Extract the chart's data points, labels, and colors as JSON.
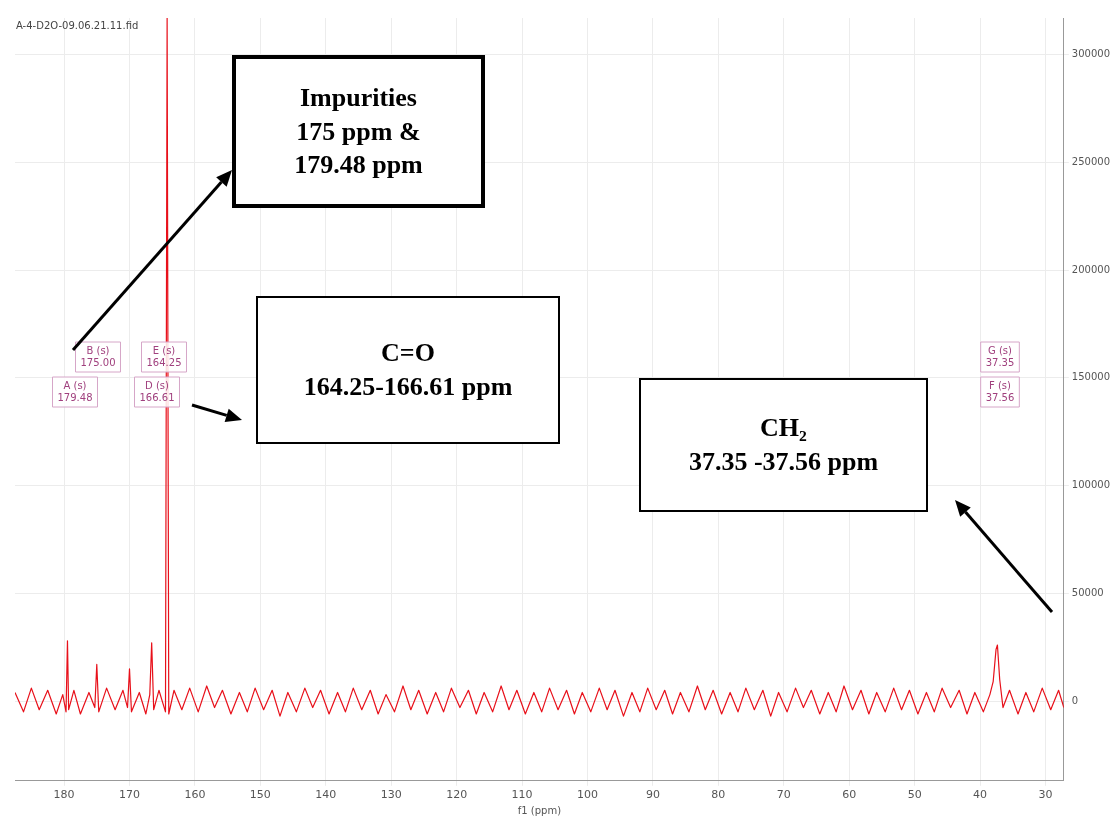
{
  "chart_data": {
    "type": "line",
    "xlabel": "f1 (ppm)",
    "x": [
      187.5,
      186.2,
      185,
      183.8,
      182.5,
      181.2,
      180.2,
      179.7,
      179.48,
      179.3,
      178.5,
      177.5,
      176.2,
      175.3,
      175.0,
      174.7,
      173.5,
      172.2,
      171,
      170.3,
      170.0,
      169.7,
      168.5,
      167.5,
      166.9,
      166.61,
      166.3,
      165.5,
      164.5,
      164.25,
      164.0,
      163.2,
      162,
      160.8,
      159.5,
      158.2,
      157,
      155.8,
      154.5,
      153.2,
      152,
      150.8,
      149.5,
      148.2,
      147,
      145.8,
      144.5,
      143.2,
      142,
      140.8,
      139.5,
      138.2,
      137,
      135.8,
      134.5,
      133.2,
      132,
      130.8,
      129.5,
      128.2,
      127,
      125.8,
      124.5,
      123.2,
      122,
      120.8,
      119.5,
      118.2,
      117,
      115.8,
      114.5,
      113.2,
      112,
      110.8,
      109.5,
      108.2,
      107,
      105.8,
      104.5,
      103.2,
      102,
      100.8,
      99.5,
      98.2,
      97,
      95.8,
      94.5,
      93.2,
      92,
      90.8,
      89.5,
      88.2,
      87,
      85.8,
      84.5,
      83.2,
      82,
      80.8,
      79.5,
      78.2,
      77,
      75.8,
      74.5,
      73.2,
      72,
      70.8,
      69.5,
      68.2,
      67,
      65.8,
      64.5,
      63.2,
      62,
      60.8,
      59.5,
      58.2,
      57,
      55.8,
      54.5,
      53.2,
      52,
      50.8,
      49.5,
      48.2,
      47,
      45.8,
      44.5,
      43.2,
      42,
      40.8,
      39.5,
      38.5,
      38.0,
      37.56,
      37.35,
      37.0,
      36.5,
      35.5,
      34.2,
      33,
      31.8,
      30.5,
      29.2,
      28,
      27.2
    ],
    "series": [
      {
        "color": "#e8101a",
        "values": [
          4000,
          -5000,
          6000,
          -4000,
          5000,
          -6000,
          3000,
          -5000,
          28000,
          -4000,
          5000,
          -6000,
          4000,
          -3000,
          17000,
          -5000,
          6000,
          -4000,
          5000,
          -3000,
          15000,
          -5000,
          4000,
          -6000,
          3000,
          27000,
          -4000,
          5000,
          -5000,
          317000,
          -6000,
          5000,
          -4000,
          6000,
          -5000,
          7000,
          -3000,
          5000,
          -6000,
          4000,
          -5000,
          6000,
          -4000,
          5000,
          -7000,
          4000,
          -5000,
          6000,
          -3000,
          5000,
          -6000,
          4000,
          -5000,
          6000,
          -4000,
          5000,
          -6000,
          3000,
          -5000,
          7000,
          -4000,
          5000,
          -6000,
          4000,
          -5000,
          6000,
          -3000,
          5000,
          -6000,
          4000,
          -5000,
          7000,
          -4000,
          5000,
          -6000,
          4000,
          -5000,
          6000,
          -4000,
          5000,
          -6000,
          4000,
          -5000,
          6000,
          -4000,
          5000,
          -7000,
          4000,
          -5000,
          6000,
          -4000,
          5000,
          -6000,
          4000,
          -5000,
          7000,
          -4000,
          5000,
          -6000,
          4000,
          -5000,
          6000,
          -4000,
          5000,
          -7000,
          4000,
          -5000,
          6000,
          -3000,
          5000,
          -6000,
          4000,
          -5000,
          7000,
          -4000,
          5000,
          -6000,
          4000,
          -5000,
          6000,
          -4000,
          5000,
          -6000,
          4000,
          -5000,
          6000,
          -3000,
          5000,
          -6000,
          4000,
          -5000,
          3000,
          9000,
          24000,
          26000,
          10000,
          -3000,
          5000,
          -6000,
          4000,
          -5000,
          6000,
          -4000,
          5000,
          -3000
        ]
      }
    ],
    "xlim": [
      187.5,
      27.2
    ],
    "xticks": [
      180,
      170,
      160,
      150,
      140,
      130,
      120,
      110,
      100,
      90,
      80,
      70,
      60,
      50,
      40,
      30
    ],
    "ylim": [
      -37000,
      317000
    ],
    "yticks": [
      0,
      50000,
      100000,
      150000,
      200000,
      250000,
      300000
    ],
    "grid": true,
    "legend": false,
    "marker": "none",
    "annotations": [
      "A-4-D2O-09.06.21.11.fid",
      "Impurities\n175 ppm &\n179.48 ppm",
      "C=O\n164.25-166.61 ppm",
      "CH₂\n37.35 -37.56 ppm",
      "A (s)\n179.48",
      "B (s)\n175.00",
      "D (s)\n166.61",
      "E (s)\n164.25",
      "F (s)\n37.56",
      "G (s)\n37.35"
    ]
  }
}
